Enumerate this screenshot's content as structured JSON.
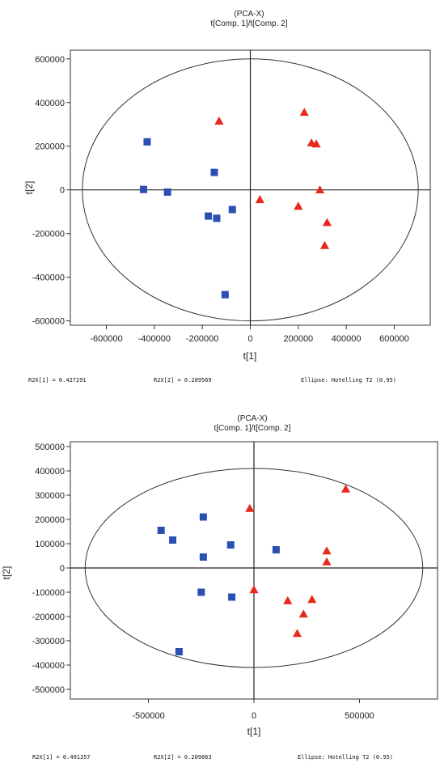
{
  "chart_data": [
    {
      "type": "scatter",
      "title": "(PCA-X)",
      "subtitle": "t[Comp. 1]/t[Comp. 2]",
      "xlabel": "t[1]",
      "ylabel": "t[2]",
      "xlim": [
        -750000,
        750000
      ],
      "ylim": [
        -620000,
        640000
      ],
      "xticks": [
        -600000,
        -400000,
        -200000,
        0,
        200000,
        400000,
        600000
      ],
      "xtick_labels": [
        "-600000",
        "-400000",
        "-200000",
        "0",
        "200000",
        "400000",
        "600000"
      ],
      "yticks": [
        600000,
        400000,
        200000,
        0,
        -200000,
        -400000,
        -600000
      ],
      "ytick_labels": [
        "600000",
        "400000",
        "200000",
        "0",
        "-200000",
        "-400000",
        "-600000"
      ],
      "ellipse": {
        "rx": 700000,
        "ry": 600000
      },
      "grid": false,
      "series": [
        {
          "marker": "square",
          "color": "#2b4fb3",
          "points": [
            [
              -430000,
              220000
            ],
            [
              -445000,
              2000
            ],
            [
              -345000,
              -10000
            ],
            [
              -150000,
              80000
            ],
            [
              -175000,
              -120000
            ],
            [
              -140000,
              -130000
            ],
            [
              -75000,
              -90000
            ],
            [
              -105000,
              -480000
            ]
          ]
        },
        {
          "marker": "triangle",
          "color": "#e8281b",
          "points": [
            [
              -130000,
              315000
            ],
            [
              225000,
              355000
            ],
            [
              255000,
              215000
            ],
            [
              275000,
              210000
            ],
            [
              290000,
              0
            ],
            [
              40000,
              -45000
            ],
            [
              200000,
              -75000
            ],
            [
              320000,
              -150000
            ],
            [
              310000,
              -255000
            ]
          ]
        }
      ],
      "stats": [
        "R2X[1] = 0.427291",
        "R2X[2] = 0.289569",
        "Ellipse: Hotelling T2 (0.95)"
      ]
    },
    {
      "type": "scatter",
      "title": "(PCA-X)",
      "subtitle": "t[Comp. 1]/t[Comp. 2]",
      "xlabel": "t[1]",
      "ylabel": "t[2]",
      "xlim": [
        -870000,
        870000
      ],
      "ylim": [
        -540000,
        520000
      ],
      "xticks": [
        -500000,
        0,
        500000
      ],
      "xtick_labels": [
        "-500000",
        "0",
        "500000"
      ],
      "yticks": [
        500000,
        400000,
        300000,
        200000,
        100000,
        0,
        -100000,
        -200000,
        -300000,
        -400000,
        -500000
      ],
      "ytick_labels": [
        "500000",
        "400000",
        "300000",
        "200000",
        "100000",
        "0",
        "-100000",
        "-200000",
        "-300000",
        "-400000",
        "-500000"
      ],
      "ellipse": {
        "rx": 800000,
        "ry": 410000
      },
      "grid": false,
      "series": [
        {
          "marker": "square",
          "color": "#2b4fb3",
          "points": [
            [
              -440000,
              155000
            ],
            [
              -385000,
              115000
            ],
            [
              -240000,
              210000
            ],
            [
              -240000,
              45000
            ],
            [
              -110000,
              95000
            ],
            [
              105000,
              75000
            ],
            [
              -250000,
              -100000
            ],
            [
              -105000,
              -120000
            ],
            [
              -355000,
              -345000
            ]
          ]
        },
        {
          "marker": "triangle",
          "color": "#e8281b",
          "points": [
            [
              -20000,
              245000
            ],
            [
              435000,
              325000
            ],
            [
              345000,
              70000
            ],
            [
              345000,
              25000
            ],
            [
              0,
              -90000
            ],
            [
              160000,
              -135000
            ],
            [
              275000,
              -130000
            ],
            [
              235000,
              -190000
            ],
            [
              205000,
              -270000
            ]
          ]
        }
      ],
      "stats": [
        "R2X[1] = 0.491357",
        "R2X[2] = 0.209863",
        "Ellipse: Hotelling T2 (0.95)"
      ]
    }
  ]
}
